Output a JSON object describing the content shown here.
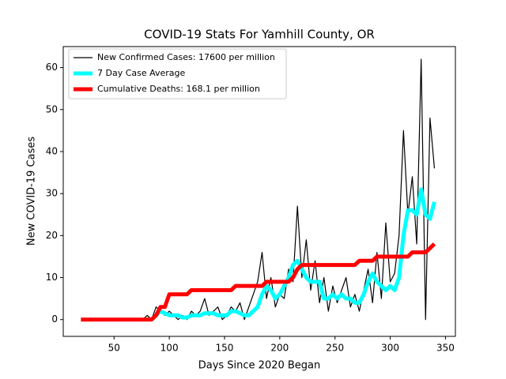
{
  "chart_data": {
    "type": "line",
    "title": "COVID-19 Stats For Yamhill County, OR",
    "xlabel": "Days Since 2020 Began",
    "ylabel": "New COVID-19 Cases",
    "legend": "upper left",
    "grid": false,
    "xlim": [
      4,
      359
    ],
    "ylim": [
      -4,
      65
    ],
    "xticks": [
      50,
      100,
      150,
      200,
      250,
      300,
      350
    ],
    "yticks": [
      0,
      10,
      20,
      30,
      40,
      50,
      60
    ],
    "x": [
      20,
      24,
      28,
      32,
      36,
      40,
      44,
      48,
      52,
      56,
      60,
      64,
      68,
      72,
      76,
      80,
      84,
      88,
      92,
      96,
      100,
      104,
      108,
      112,
      116,
      120,
      124,
      128,
      132,
      136,
      140,
      144,
      148,
      152,
      156,
      160,
      164,
      168,
      172,
      176,
      180,
      184,
      188,
      192,
      196,
      200,
      204,
      208,
      212,
      216,
      220,
      224,
      228,
      232,
      236,
      240,
      244,
      248,
      252,
      256,
      260,
      264,
      268,
      272,
      276,
      280,
      284,
      288,
      292,
      296,
      300,
      304,
      308,
      312,
      316,
      320,
      324,
      328,
      332,
      336,
      340
    ],
    "series": [
      {
        "name": "New Confirmed Cases: 17600 per million",
        "color": "#000000",
        "width": 1.2,
        "values": [
          null,
          null,
          null,
          null,
          null,
          null,
          null,
          null,
          null,
          null,
          null,
          null,
          null,
          null,
          0,
          1,
          0,
          3,
          2,
          1,
          2,
          1,
          0,
          1,
          0,
          2,
          1,
          2,
          5,
          1,
          2,
          3,
          0,
          1,
          3,
          2,
          4,
          0,
          3,
          6,
          9,
          16,
          5,
          10,
          3,
          6,
          5,
          12,
          9,
          27,
          10,
          19,
          7,
          14,
          4,
          10,
          2,
          8,
          4,
          7,
          10,
          3,
          6,
          2,
          7,
          12,
          4,
          16,
          5,
          23,
          9,
          11,
          20,
          45,
          25,
          34,
          18,
          62,
          0,
          48,
          36
        ]
      },
      {
        "name": "7 Day Case Average",
        "color": "#00ffff",
        "width": 5,
        "values": [
          null,
          null,
          null,
          null,
          null,
          null,
          null,
          null,
          null,
          null,
          null,
          null,
          null,
          null,
          null,
          null,
          null,
          1,
          2,
          1.5,
          1,
          1,
          1,
          0.5,
          0.5,
          1,
          1,
          1,
          1.5,
          1.5,
          1.5,
          1,
          1,
          1,
          2,
          2,
          1.5,
          1,
          1,
          2,
          3,
          6,
          8,
          7,
          5,
          6,
          8,
          10,
          13,
          14,
          12,
          10,
          9,
          9,
          9,
          5,
          5,
          6,
          5,
          6,
          5,
          5,
          4,
          4,
          6,
          9,
          11,
          9,
          8,
          7,
          8,
          7,
          10,
          20,
          26,
          26,
          25,
          31,
          25,
          24,
          28
        ]
      },
      {
        "name": "Cumulative Deaths: 168.1 per million",
        "color": "#ff0000",
        "width": 5,
        "values": [
          0,
          0,
          0,
          0,
          0,
          0,
          0,
          0,
          0,
          0,
          0,
          0,
          0,
          0,
          0,
          0,
          0,
          1,
          3,
          3,
          6,
          6,
          6,
          6,
          6,
          7,
          7,
          7,
          7,
          7,
          7,
          7,
          7,
          7,
          7,
          8,
          8,
          8,
          8,
          8,
          8,
          8,
          9,
          9,
          9,
          9,
          9,
          9,
          10,
          12,
          13,
          13,
          13,
          13,
          13,
          13,
          13,
          13,
          13,
          13,
          13,
          13,
          13,
          14,
          14,
          14,
          14,
          15,
          15,
          15,
          15,
          15,
          15,
          15,
          15,
          16,
          16,
          16,
          16,
          17,
          18
        ]
      }
    ]
  }
}
